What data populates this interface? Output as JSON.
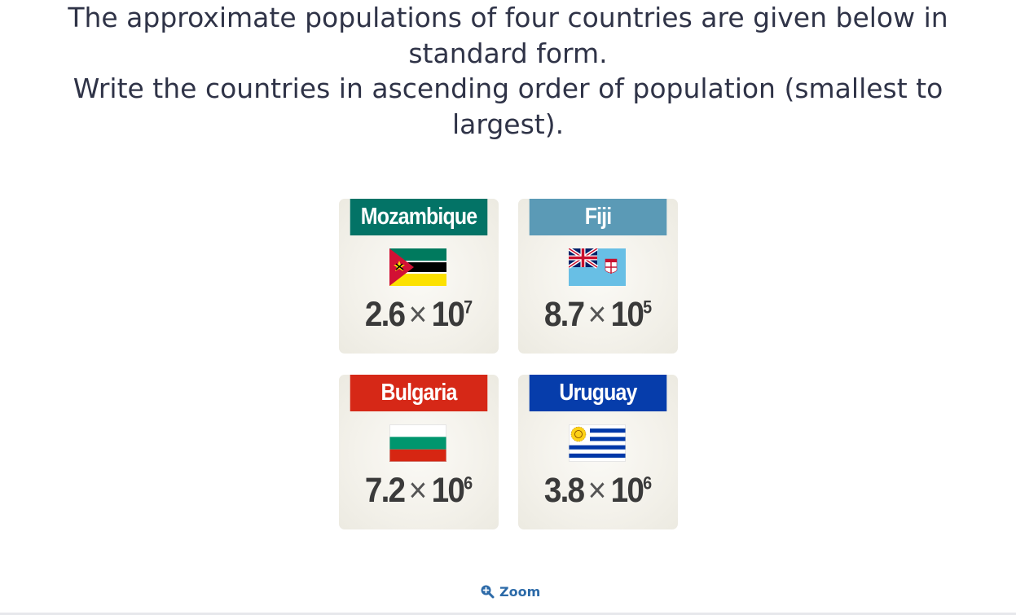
{
  "question": {
    "line1": "The approximate populations of four countries are given below in standard form.",
    "line2": "Write the countries in ascending order of population (smallest to largest)."
  },
  "cards": [
    {
      "country": "Mozambique",
      "mantissa": "2.6",
      "base": "10",
      "exponent": "7",
      "header_color": "#037366"
    },
    {
      "country": "Fiji",
      "mantissa": "8.7",
      "base": "10",
      "exponent": "5",
      "header_color": "#5b9ab6"
    },
    {
      "country": "Bulgaria",
      "mantissa": "7.2",
      "base": "10",
      "exponent": "6",
      "header_color": "#d62817"
    },
    {
      "country": "Uruguay",
      "mantissa": "3.8",
      "base": "10",
      "exponent": "6",
      "header_color": "#063dab"
    }
  ],
  "times_symbol": "×",
  "zoom": {
    "label": "Zoom",
    "icon": "zoom-in-icon"
  }
}
